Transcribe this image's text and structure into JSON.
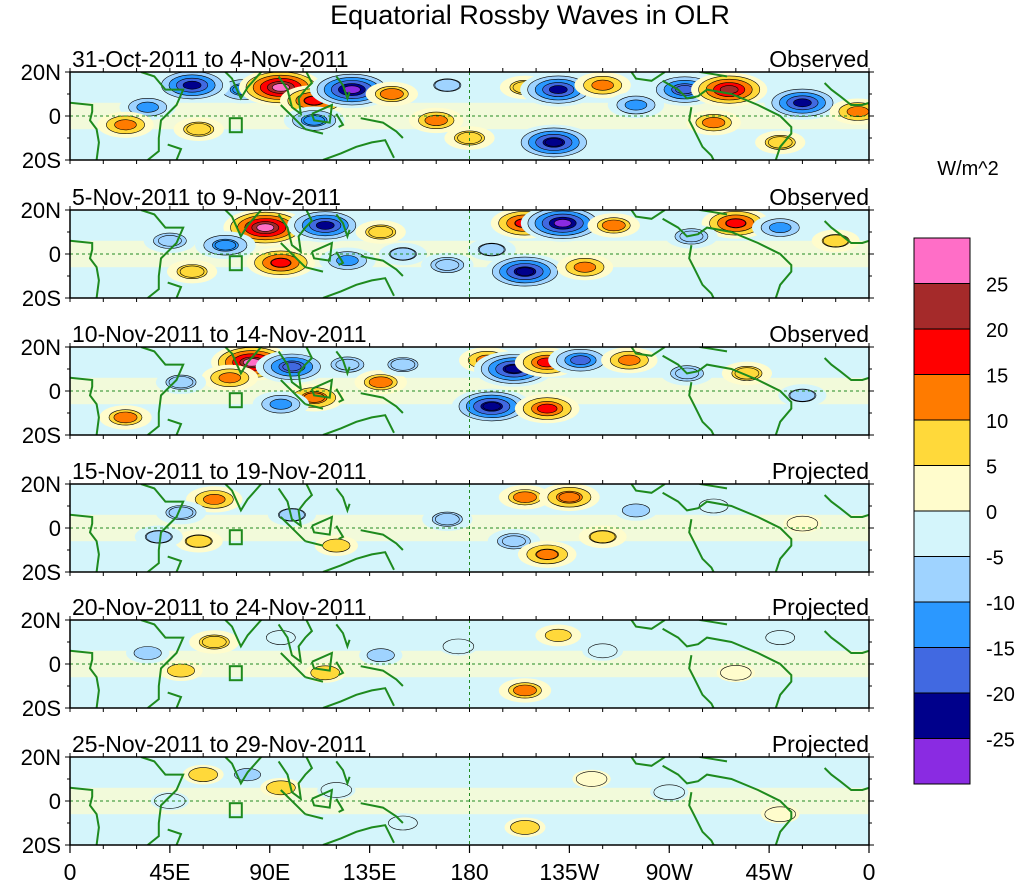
{
  "chart_data": {
    "type": "heatmap",
    "title": "Equatorial Rossby Waves in OLR",
    "units_label": "W/m^2",
    "lat_ticks": [
      "20N",
      "0",
      "20S"
    ],
    "lon_ticks": [
      "0",
      "45E",
      "90E",
      "135E",
      "180",
      "135W",
      "90W",
      "45W",
      "0"
    ],
    "lat_range": [
      -20,
      20
    ],
    "lon_range": [
      0,
      360
    ],
    "colorbar": {
      "labels": [
        "25",
        "20",
        "15",
        "10",
        "5",
        "0",
        "-5",
        "-10",
        "-15",
        "-20",
        "-25"
      ],
      "colors": [
        "#ff6ec7",
        "#a52a2a",
        "#ff0000",
        "#ff7b00",
        "#ffd93a",
        "#fffccc",
        "#d4f5fb",
        "#9fd3ff",
        "#2b98ff",
        "#4169e1",
        "#00008b",
        "#8a2be2"
      ]
    },
    "panels": [
      {
        "period": "31-Oct-2011 to 4-Nov-2011",
        "status": "Observed",
        "anomalies": [
          {
            "lon": 78,
            "lat": 12,
            "value": -14
          },
          {
            "lon": 95,
            "lat": 13,
            "value": 26
          },
          {
            "lon": 110,
            "lat": 7,
            "value": 18
          },
          {
            "lon": 127,
            "lat": 12,
            "value": -26
          },
          {
            "lon": 55,
            "lat": 14,
            "value": -22
          },
          {
            "lon": 35,
            "lat": 4,
            "value": -12
          },
          {
            "lon": 25,
            "lat": -4,
            "value": 12
          },
          {
            "lon": 58,
            "lat": -6,
            "value": 9
          },
          {
            "lon": 110,
            "lat": -2,
            "value": -14
          },
          {
            "lon": 145,
            "lat": 10,
            "value": 10
          },
          {
            "lon": 165,
            "lat": -2,
            "value": 11
          },
          {
            "lon": 180,
            "lat": -10,
            "value": 9
          },
          {
            "lon": 205,
            "lat": 13,
            "value": 9
          },
          {
            "lon": 220,
            "lat": 12,
            "value": -22
          },
          {
            "lon": 240,
            "lat": 14,
            "value": 12
          },
          {
            "lon": 218,
            "lat": -12,
            "value": -24
          },
          {
            "lon": 255,
            "lat": 5,
            "value": -12
          },
          {
            "lon": 277,
            "lat": 12,
            "value": -20
          },
          {
            "lon": 297,
            "lat": 12,
            "value": 22
          },
          {
            "lon": 330,
            "lat": 6,
            "value": -22
          },
          {
            "lon": 355,
            "lat": 2,
            "value": 12
          },
          {
            "lon": 290,
            "lat": -3,
            "value": 11
          },
          {
            "lon": 320,
            "lat": -12,
            "value": 9
          },
          {
            "lon": 170,
            "lat": 14,
            "value": -8
          }
        ]
      },
      {
        "period": "5-Nov-2011 to 9-Nov-2011",
        "status": "Observed",
        "anomalies": [
          {
            "lon": 88,
            "lat": 12,
            "value": 26
          },
          {
            "lon": 115,
            "lat": 13,
            "value": -22
          },
          {
            "lon": 95,
            "lat": -4,
            "value": 18
          },
          {
            "lon": 70,
            "lat": 4,
            "value": -14
          },
          {
            "lon": 45,
            "lat": 6,
            "value": -10
          },
          {
            "lon": 55,
            "lat": -8,
            "value": 9
          },
          {
            "lon": 125,
            "lat": -3,
            "value": -12
          },
          {
            "lon": 150,
            "lat": 0,
            "value": -8
          },
          {
            "lon": 140,
            "lat": 10,
            "value": 9
          },
          {
            "lon": 205,
            "lat": 14,
            "value": 18
          },
          {
            "lon": 222,
            "lat": 14,
            "value": -26
          },
          {
            "lon": 245,
            "lat": 13,
            "value": 10
          },
          {
            "lon": 205,
            "lat": -8,
            "value": -24
          },
          {
            "lon": 232,
            "lat": -6,
            "value": 12
          },
          {
            "lon": 190,
            "lat": 2,
            "value": -8
          },
          {
            "lon": 300,
            "lat": 14,
            "value": 18
          },
          {
            "lon": 280,
            "lat": 8,
            "value": -10
          },
          {
            "lon": 320,
            "lat": 12,
            "value": -12
          },
          {
            "lon": 345,
            "lat": 6,
            "value": 8
          },
          {
            "lon": 170,
            "lat": -5,
            "value": -10
          }
        ]
      },
      {
        "period": "10-Nov-2011 to 14-Nov-2011",
        "status": "Observed",
        "anomalies": [
          {
            "lon": 82,
            "lat": 13,
            "value": 25
          },
          {
            "lon": 100,
            "lat": 11,
            "value": -20
          },
          {
            "lon": 72,
            "lat": 6,
            "value": 12
          },
          {
            "lon": 110,
            "lat": -3,
            "value": 14
          },
          {
            "lon": 95,
            "lat": -6,
            "value": -12
          },
          {
            "lon": 50,
            "lat": 4,
            "value": -9
          },
          {
            "lon": 25,
            "lat": -12,
            "value": 10
          },
          {
            "lon": 125,
            "lat": 12,
            "value": -10
          },
          {
            "lon": 140,
            "lat": 4,
            "value": 10
          },
          {
            "lon": 150,
            "lat": 12,
            "value": -9
          },
          {
            "lon": 188,
            "lat": 14,
            "value": 12
          },
          {
            "lon": 200,
            "lat": 10,
            "value": -24
          },
          {
            "lon": 215,
            "lat": 13,
            "value": 16
          },
          {
            "lon": 230,
            "lat": 14,
            "value": -16
          },
          {
            "lon": 252,
            "lat": 14,
            "value": 12
          },
          {
            "lon": 190,
            "lat": -7,
            "value": -24
          },
          {
            "lon": 215,
            "lat": -8,
            "value": 16
          },
          {
            "lon": 278,
            "lat": 8,
            "value": -10
          },
          {
            "lon": 305,
            "lat": 8,
            "value": 9
          },
          {
            "lon": 330,
            "lat": -2,
            "value": -8
          }
        ]
      },
      {
        "period": "15-Nov-2011 to 19-Nov-2011",
        "status": "Projected",
        "anomalies": [
          {
            "lon": 65,
            "lat": 13,
            "value": 12
          },
          {
            "lon": 50,
            "lat": 7,
            "value": -9
          },
          {
            "lon": 58,
            "lat": -6,
            "value": 8
          },
          {
            "lon": 40,
            "lat": -4,
            "value": -8
          },
          {
            "lon": 100,
            "lat": 6,
            "value": -8
          },
          {
            "lon": 170,
            "lat": 4,
            "value": -9
          },
          {
            "lon": 205,
            "lat": 14,
            "value": 10
          },
          {
            "lon": 225,
            "lat": 14,
            "value": 14
          },
          {
            "lon": 200,
            "lat": -6,
            "value": -10
          },
          {
            "lon": 215,
            "lat": -12,
            "value": 13
          },
          {
            "lon": 240,
            "lat": -4,
            "value": 8
          },
          {
            "lon": 255,
            "lat": 8,
            "value": -6
          },
          {
            "lon": 290,
            "lat": 10,
            "value": -5
          },
          {
            "lon": 330,
            "lat": 2,
            "value": 4
          },
          {
            "lon": 120,
            "lat": -8,
            "value": 6
          }
        ]
      },
      {
        "period": "20-Nov-2011 to 24-Nov-2011",
        "status": "Projected",
        "anomalies": [
          {
            "lon": 65,
            "lat": 10,
            "value": 9
          },
          {
            "lon": 50,
            "lat": -3,
            "value": 6
          },
          {
            "lon": 35,
            "lat": 5,
            "value": -6
          },
          {
            "lon": 95,
            "lat": 12,
            "value": -5
          },
          {
            "lon": 140,
            "lat": 4,
            "value": -6
          },
          {
            "lon": 175,
            "lat": 8,
            "value": -4
          },
          {
            "lon": 220,
            "lat": 13,
            "value": 7
          },
          {
            "lon": 205,
            "lat": -12,
            "value": 10
          },
          {
            "lon": 240,
            "lat": 6,
            "value": -5
          },
          {
            "lon": 300,
            "lat": -4,
            "value": 4
          },
          {
            "lon": 320,
            "lat": 12,
            "value": -5
          },
          {
            "lon": 115,
            "lat": -4,
            "value": 5
          }
        ]
      },
      {
        "period": "25-Nov-2011 to 29-Nov-2011",
        "status": "Projected",
        "anomalies": [
          {
            "lon": 60,
            "lat": 12,
            "value": 5
          },
          {
            "lon": 80,
            "lat": 12,
            "value": -7
          },
          {
            "lon": 95,
            "lat": 6,
            "value": 5
          },
          {
            "lon": 45,
            "lat": 0,
            "value": -4
          },
          {
            "lon": 150,
            "lat": -10,
            "value": -5
          },
          {
            "lon": 205,
            "lat": -12,
            "value": 5
          },
          {
            "lon": 235,
            "lat": 10,
            "value": 4
          },
          {
            "lon": 270,
            "lat": 4,
            "value": -4
          },
          {
            "lon": 320,
            "lat": -6,
            "value": 4
          },
          {
            "lon": 120,
            "lat": 5,
            "value": -4
          }
        ]
      }
    ]
  }
}
